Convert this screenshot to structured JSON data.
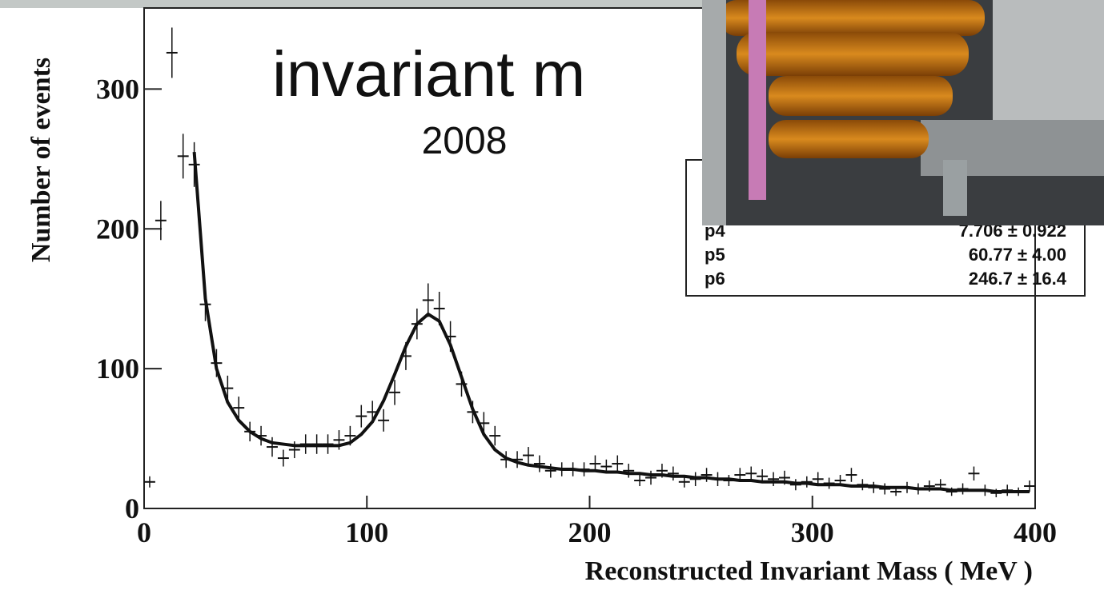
{
  "chart_data": {
    "type": "histogram-fit",
    "title": "invariant m",
    "subtitle": "2008",
    "x_label": "Reconstructed Invariant Mass ( MeV )",
    "y_label": "Number of events",
    "xlim": [
      0,
      400
    ],
    "xticks": [
      0,
      100,
      200,
      300,
      400
    ],
    "ylim": [
      0,
      358
    ],
    "yticks": [
      0,
      100,
      200,
      300
    ],
    "x": [
      2.5,
      7.5,
      12.5,
      17.5,
      22.5,
      27.5,
      32.5,
      37.5,
      42.5,
      47.5,
      52.5,
      57.5,
      62.5,
      67.5,
      72.5,
      77.5,
      82.5,
      87.5,
      92.5,
      97.5,
      102.5,
      107.5,
      112.5,
      117.5,
      122.5,
      127.5,
      132.5,
      137.5,
      142.5,
      147.5,
      152.5,
      157.5,
      162.5,
      167.5,
      172.5,
      177.5,
      182.5,
      187.5,
      192.5,
      197.5,
      202.5,
      207.5,
      212.5,
      217.5,
      222.5,
      227.5,
      232.5,
      237.5,
      242.5,
      247.5,
      252.5,
      257.5,
      262.5,
      267.5,
      272.5,
      277.5,
      282.5,
      287.5,
      292.5,
      297.5,
      302.5,
      307.5,
      312.5,
      317.5,
      322.5,
      327.5,
      332.5,
      337.5,
      342.5,
      347.5,
      352.5,
      357.5,
      362.5,
      367.5,
      372.5,
      377.5,
      382.5,
      387.5,
      392.5,
      397.5
    ],
    "values": [
      19,
      206,
      326,
      252,
      246,
      146,
      104,
      86,
      72,
      55,
      52,
      44,
      36,
      42,
      46,
      46,
      46,
      49,
      52,
      66,
      69,
      63,
      83,
      109,
      132,
      149,
      143,
      123,
      89,
      69,
      61,
      52,
      35,
      35,
      38,
      32,
      27,
      28,
      28,
      28,
      32,
      30,
      32,
      27,
      20,
      22,
      27,
      25,
      19,
      21,
      24,
      21,
      20,
      24,
      25,
      23,
      21,
      22,
      17,
      19,
      21,
      18,
      20,
      24,
      17,
      15,
      14,
      12,
      15,
      14,
      16,
      17,
      12,
      14,
      25,
      13,
      11,
      13,
      12,
      16
    ],
    "errors": [
      4,
      14,
      18,
      16,
      16,
      12,
      10,
      9,
      8,
      7,
      7,
      7,
      6,
      6,
      7,
      7,
      7,
      7,
      7,
      8,
      8,
      8,
      9,
      10,
      11,
      12,
      12,
      11,
      9,
      8,
      8,
      7,
      6,
      6,
      6,
      6,
      5,
      5,
      5,
      5,
      6,
      5,
      6,
      5,
      4,
      5,
      5,
      5,
      4,
      5,
      5,
      5,
      4,
      5,
      5,
      5,
      5,
      5,
      4,
      4,
      5,
      4,
      4,
      5,
      4,
      4,
      4,
      3,
      4,
      4,
      4,
      4,
      3,
      4,
      5,
      4,
      3,
      4,
      3,
      4
    ],
    "fit": [
      null,
      null,
      null,
      null,
      255,
      150,
      100,
      76,
      63,
      55,
      50,
      47,
      46,
      45,
      45,
      45,
      45,
      45,
      47,
      53,
      62,
      77,
      96,
      116,
      132,
      139,
      134,
      117,
      94,
      71,
      53,
      42,
      36,
      33,
      31,
      30,
      29,
      28,
      28,
      27,
      27,
      26,
      26,
      25,
      25,
      24,
      24,
      23,
      23,
      22,
      22,
      21,
      21,
      20,
      20,
      19,
      19,
      19,
      18,
      18,
      17,
      17,
      17,
      16,
      16,
      16,
      15,
      15,
      15,
      14,
      14,
      14,
      13,
      13,
      13,
      13,
      12,
      12,
      12,
      12
    ],
    "color": "#111111",
    "stats": [
      {
        "name": "p4",
        "value": "7.706 ± 0.922"
      },
      {
        "name": "p5",
        "value": "60.77 ± 4.00"
      },
      {
        "name": "p6",
        "value": "246.7 ± 16.4"
      }
    ]
  }
}
